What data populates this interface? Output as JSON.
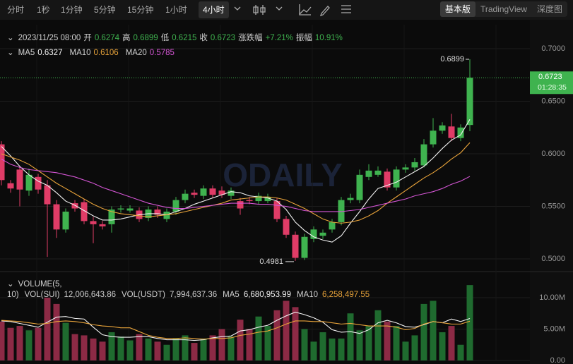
{
  "toolbar": {
    "intervals": [
      "分时",
      "1秒",
      "1分钟",
      "5分钟",
      "15分钟",
      "1小时",
      "4小时"
    ],
    "selected_interval": "4小时",
    "views": [
      "基本版",
      "TradingView",
      "深度图"
    ],
    "selected_view": "基本版"
  },
  "chart_data": [
    {
      "type": "candlestick",
      "watermark": "ODAILY",
      "info": {
        "date": "2023/11/25 08:00",
        "items": [
          {
            "label": "开",
            "value": "0.6274"
          },
          {
            "label": "高",
            "value": "0.6899"
          },
          {
            "label": "低",
            "value": "0.6215"
          },
          {
            "label": "收",
            "value": "0.6723"
          },
          {
            "label": "涨跌幅",
            "value": "+7.21%"
          },
          {
            "label": "振幅",
            "value": "10.91%"
          }
        ]
      },
      "countdown": "01:28:35",
      "up_color": "#3fb34f",
      "down_color": "#e03c67",
      "categories": [
        null,
        null,
        null,
        null,
        null,
        null,
        null,
        null,
        null,
        null,
        null,
        null,
        null,
        null,
        null,
        null,
        null,
        null,
        null,
        null,
        null,
        null,
        null,
        null,
        null,
        null,
        null,
        null,
        null,
        null,
        null,
        null,
        null,
        null,
        null,
        null,
        null,
        null,
        null,
        null,
        null,
        null,
        null,
        null,
        null,
        null,
        null,
        null,
        null,
        null,
        null,
        null
      ],
      "open": [
        0.609,
        0.572,
        0.585,
        0.565,
        0.578,
        0.57,
        0.552,
        0.528,
        0.553,
        0.554,
        0.536,
        0.533,
        0.533,
        0.547,
        0.546,
        0.546,
        0.539,
        0.547,
        0.538,
        0.545,
        0.556,
        0.563,
        0.56,
        0.567,
        0.565,
        0.56,
        0.555,
        0.556,
        0.555,
        0.555,
        0.555,
        0.538,
        0.523,
        0.501,
        0.519,
        0.522,
        0.528,
        0.535,
        0.556,
        0.556,
        0.578,
        0.58,
        0.583,
        0.568,
        0.585,
        0.587,
        0.589,
        0.609,
        0.622,
        0.626,
        0.615,
        0.6274
      ],
      "high": [
        0.612,
        0.575,
        0.588,
        0.586,
        0.581,
        0.575,
        0.556,
        0.548,
        0.556,
        0.557,
        0.54,
        0.536,
        0.55,
        0.551,
        0.551,
        0.549,
        0.55,
        0.55,
        0.548,
        0.559,
        0.566,
        0.566,
        0.57,
        0.57,
        0.569,
        0.568,
        0.558,
        0.559,
        0.563,
        0.562,
        0.558,
        0.541,
        0.526,
        0.524,
        0.531,
        0.528,
        0.538,
        0.559,
        0.562,
        0.585,
        0.59,
        0.588,
        0.586,
        0.588,
        0.59,
        0.596,
        0.614,
        0.634,
        0.63,
        0.638,
        0.628,
        0.6899
      ],
      "low": [
        0.57,
        0.563,
        0.55,
        0.56,
        0.562,
        0.502,
        0.52,
        0.525,
        0.545,
        0.533,
        0.515,
        0.528,
        0.525,
        0.544,
        0.544,
        0.535,
        0.536,
        0.539,
        0.535,
        0.542,
        0.553,
        0.558,
        0.557,
        0.558,
        0.558,
        0.557,
        0.542,
        0.552,
        0.552,
        0.553,
        0.535,
        0.52,
        0.4981,
        0.499,
        0.516,
        0.519,
        0.525,
        0.532,
        0.553,
        0.553,
        0.575,
        0.578,
        0.565,
        0.565,
        0.582,
        0.584,
        0.587,
        0.606,
        0.619,
        0.612,
        0.612,
        0.6215
      ],
      "close": [
        0.575,
        0.567,
        0.566,
        0.58,
        0.566,
        0.552,
        0.528,
        0.545,
        0.548,
        0.536,
        0.533,
        0.531,
        0.547,
        0.548,
        0.548,
        0.538,
        0.547,
        0.542,
        0.545,
        0.556,
        0.562,
        0.561,
        0.567,
        0.561,
        0.561,
        0.565,
        0.548,
        0.555,
        0.56,
        0.559,
        0.538,
        0.523,
        0.501,
        0.521,
        0.528,
        0.525,
        0.535,
        0.556,
        0.558,
        0.58,
        0.584,
        0.584,
        0.568,
        0.585,
        0.587,
        0.592,
        0.609,
        0.622,
        0.627,
        0.615,
        0.625,
        0.6723
      ],
      "series": [
        {
          "name": "MA5",
          "color": "#f2f2f2",
          "values": [
            0.607,
            0.598,
            0.588,
            0.58,
            0.574,
            0.57,
            0.563,
            0.555,
            0.551,
            0.546,
            0.541,
            0.537,
            0.537,
            0.538,
            0.54,
            0.542,
            0.543,
            0.543,
            0.542,
            0.545,
            0.548,
            0.552,
            0.555,
            0.558,
            0.561,
            0.564,
            0.563,
            0.56,
            0.559,
            0.558,
            0.555,
            0.547,
            0.535,
            0.527,
            0.521,
            0.518,
            0.516,
            0.522,
            0.534,
            0.545,
            0.557,
            0.567,
            0.57,
            0.573,
            0.578,
            0.583,
            0.588,
            0.596,
            0.605,
            0.613,
            0.618,
            0.6327
          ]
        },
        {
          "name": "MA10",
          "color": "#e8a33a",
          "values": [
            0.6,
            0.597,
            0.594,
            0.59,
            0.584,
            0.578,
            0.572,
            0.567,
            0.562,
            0.557,
            0.552,
            0.548,
            0.545,
            0.543,
            0.542,
            0.541,
            0.54,
            0.541,
            0.542,
            0.543,
            0.545,
            0.547,
            0.549,
            0.551,
            0.553,
            0.556,
            0.557,
            0.558,
            0.559,
            0.559,
            0.558,
            0.556,
            0.552,
            0.548,
            0.543,
            0.538,
            0.535,
            0.534,
            0.535,
            0.537,
            0.541,
            0.546,
            0.553,
            0.559,
            0.565,
            0.571,
            0.577,
            0.582,
            0.588,
            0.595,
            0.601,
            0.6106
          ]
        },
        {
          "name": "MA20",
          "color": "#d455d4",
          "values": [
            0.595,
            0.59,
            0.587,
            0.585,
            0.584,
            0.583,
            0.582,
            0.58,
            0.578,
            0.575,
            0.572,
            0.568,
            0.565,
            0.562,
            0.559,
            0.556,
            0.553,
            0.551,
            0.549,
            0.548,
            0.548,
            0.549,
            0.55,
            0.551,
            0.552,
            0.553,
            0.553,
            0.553,
            0.552,
            0.552,
            0.551,
            0.55,
            0.548,
            0.546,
            0.545,
            0.545,
            0.545,
            0.545,
            0.546,
            0.547,
            0.549,
            0.551,
            0.553,
            0.555,
            0.557,
            0.56,
            0.562,
            0.564,
            0.567,
            0.571,
            0.574,
            0.5785
          ]
        }
      ],
      "ylim": [
        0.4893,
        0.7228
      ],
      "yticks": [
        {
          "value": 0.5,
          "label": "0.5000"
        },
        {
          "value": 0.55,
          "label": "0.5500"
        },
        {
          "value": 0.6,
          "label": "0.6000"
        },
        {
          "value": 0.65,
          "label": "0.6500"
        },
        {
          "value": 0.7,
          "label": "0.7000"
        }
      ],
      "grid": true
    },
    {
      "type": "volume",
      "title": "VOLUME(5, 10)",
      "legend_items": [
        {
          "label": "VOL(SUI)",
          "value": "12,006,643.86"
        },
        {
          "label": "VOL(USDT)",
          "value": "7,994,637.36"
        }
      ],
      "up_color": "#1f6b2f",
      "down_color": "#8c2a45",
      "values": [
        6200000,
        5200000,
        5500000,
        4800000,
        5200000,
        10000000,
        9000000,
        6000000,
        4200000,
        4000000,
        3500000,
        3000000,
        4500000,
        3800000,
        3200000,
        4200000,
        3500000,
        3000000,
        2500000,
        3500000,
        4000000,
        2800000,
        3500000,
        4000000,
        5000000,
        3800000,
        6500000,
        5000000,
        7000000,
        5500000,
        8000000,
        9500000,
        8500000,
        5000000,
        3000000,
        4500000,
        3500000,
        3500000,
        7500000,
        4800000,
        5500000,
        8000000,
        6200000,
        5500000,
        3000000,
        4000000,
        9000000,
        9500000,
        4500000,
        5500000,
        2500000,
        12006643.86
      ],
      "series": [
        {
          "name": "MA5",
          "color": "#f2f2f2",
          "value_label": "6,680,953.99",
          "values": [
            6300000,
            6200000,
            5900000,
            5600000,
            5300000,
            6100000,
            6900000,
            7000000,
            6700000,
            6600000,
            5300000,
            4100000,
            3800000,
            3700000,
            3700000,
            3800000,
            3800000,
            3500000,
            3300000,
            3300000,
            3300000,
            3200000,
            3300000,
            3600000,
            3800000,
            3900000,
            4700000,
            4900000,
            5300000,
            5600000,
            6400000,
            7100000,
            7700000,
            7300000,
            6800000,
            6100000,
            4900000,
            4500000,
            4600000,
            4300000,
            4900000,
            6000000,
            6400000,
            6000000,
            5400000,
            5300000,
            5700000,
            6200000,
            6000000,
            6600000,
            6200000,
            6680953.99
          ]
        },
        {
          "name": "MA10",
          "color": "#e8a33a",
          "value_label": "6,258,497.55",
          "values": [
            6400000,
            6300000,
            6200000,
            6000000,
            5800000,
            5900000,
            6200000,
            6300000,
            6200000,
            6000000,
            5700000,
            5500000,
            5400000,
            5200000,
            5200000,
            4600000,
            4000000,
            3700000,
            3500000,
            3500000,
            3600000,
            3500000,
            3400000,
            3500000,
            3500000,
            3600000,
            4000000,
            4200000,
            4500000,
            4700000,
            5200000,
            5800000,
            6300000,
            6300000,
            6200000,
            6200000,
            6000000,
            5800000,
            5900000,
            5700000,
            5500000,
            5500000,
            5500000,
            5300000,
            4900000,
            5100000,
            5800000,
            6200000,
            6000000,
            5800000,
            5800000,
            6258497.55
          ]
        }
      ],
      "ylim": [
        0,
        13820000
      ],
      "yticks": [
        {
          "value": 0,
          "label": "0.00"
        },
        {
          "value": 5000000,
          "label": "5.00M"
        },
        {
          "value": 10000000,
          "label": "10.00M"
        }
      ],
      "grid": true
    }
  ]
}
